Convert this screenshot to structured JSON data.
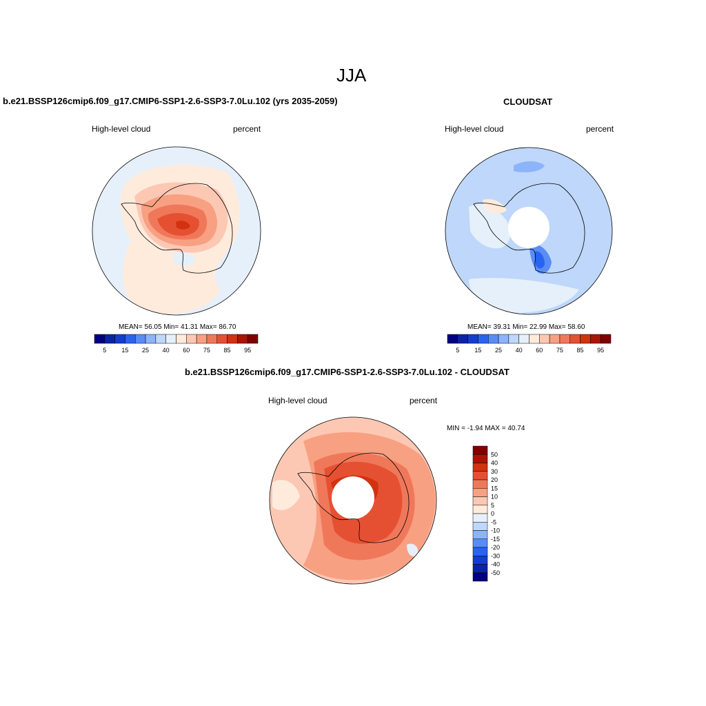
{
  "page_title": "JJA",
  "panels": {
    "model": {
      "title": "b.e21.BSSP126cmip6.f09_g17.CMIP6-SSP1-2.6-SSP3-7.0Lu.102 (yrs 2035-2059)",
      "left_label": "High-level cloud",
      "right_label": "percent",
      "stats": "MEAN=  56.05  Min=  41.31  Max=  86.70"
    },
    "obs": {
      "title": "CLOUDSAT",
      "left_label": "High-level cloud",
      "right_label": "percent",
      "stats": "MEAN=  39.31  Min=  22.99  Max=  58.60"
    },
    "diff": {
      "title": "b.e21.BSSP126cmip6.f09_g17.CMIP6-SSP1-2.6-SSP3-7.0Lu.102 - CLOUDSAT",
      "left_label": "High-level cloud",
      "right_label": "percent",
      "stats": "MIN =  -1.94 MAX =  40.74"
    }
  },
  "colorbars": {
    "abs": {
      "colors": [
        "#000080",
        "#0a23a8",
        "#143cd2",
        "#2864f0",
        "#5a8cf5",
        "#8cb4fa",
        "#bed7fa",
        "#e6f0fa",
        "#ffebdc",
        "#fcc8b4",
        "#f8a082",
        "#f0785a",
        "#e65032",
        "#d2320f",
        "#aa1405",
        "#800000"
      ],
      "tick_labels": [
        "5",
        "15",
        "25",
        "40",
        "60",
        "75",
        "85",
        "95"
      ]
    },
    "diff": {
      "colors": [
        "#800000",
        "#aa1405",
        "#d2320f",
        "#e65032",
        "#f0785a",
        "#f8a082",
        "#fcc8b4",
        "#ffebdc",
        "#e6f0fa",
        "#bed7fa",
        "#8cb4fa",
        "#5a8cf5",
        "#2864f0",
        "#143cd2",
        "#0a23a8",
        "#000080"
      ],
      "tick_labels": [
        "50",
        "40",
        "30",
        "20",
        "15",
        "10",
        "5",
        "0",
        "-5",
        "-10",
        "-15",
        "-20",
        "-30",
        "-40",
        "-50"
      ]
    }
  },
  "chart_data": [
    {
      "type": "heatmap",
      "title": "b.e21.BSSP126cmip6.f09_g17.CMIP6-SSP1-2.6-SSP3-7.0Lu.102 (yrs 2035-2059)",
      "projection": "south-polar-stereographic",
      "variable": "High-level cloud",
      "units": "percent",
      "levels": [
        5,
        10,
        15,
        20,
        25,
        30,
        40,
        50,
        60,
        65,
        75,
        80,
        85,
        90,
        95
      ],
      "mean": 56.05,
      "min": 41.31,
      "max": 86.7
    },
    {
      "type": "heatmap",
      "title": "CLOUDSAT",
      "projection": "south-polar-stereographic",
      "variable": "High-level cloud",
      "units": "percent",
      "levels": [
        5,
        10,
        15,
        20,
        25,
        30,
        40,
        50,
        60,
        65,
        75,
        80,
        85,
        90,
        95
      ],
      "mean": 39.31,
      "min": 22.99,
      "max": 58.6
    },
    {
      "type": "heatmap",
      "title": "b.e21.BSSP126cmip6.f09_g17.CMIP6-SSP1-2.6-SSP3-7.0Lu.102 - CLOUDSAT",
      "projection": "south-polar-stereographic",
      "variable": "High-level cloud",
      "units": "percent",
      "levels": [
        -50,
        -40,
        -30,
        -20,
        -15,
        -10,
        -5,
        0,
        5,
        10,
        15,
        20,
        30,
        40,
        50
      ],
      "min": -1.94,
      "max": 40.74
    }
  ]
}
